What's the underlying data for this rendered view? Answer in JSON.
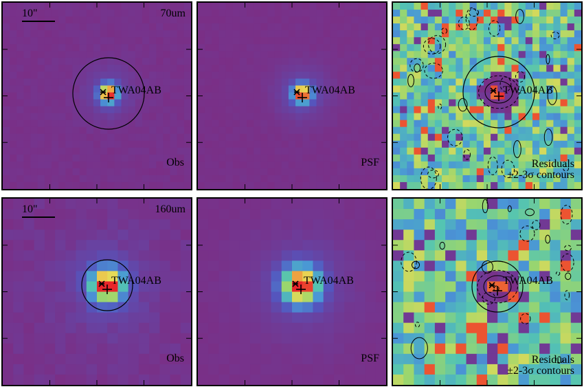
{
  "figure": {
    "source_name": "TWA04AB",
    "rows": [
      {
        "band": "70um",
        "scale": "10\"",
        "panels": [
          {
            "kind": "Obs",
            "type": "obs"
          },
          {
            "kind": "PSF",
            "type": "psf"
          },
          {
            "kind": "Residuals",
            "kind_line2": "±2-3σ contours",
            "type": "res"
          }
        ]
      },
      {
        "band": "160um",
        "scale": "10\"",
        "panels": [
          {
            "kind": "Obs",
            "type": "obs"
          },
          {
            "kind": "PSF",
            "type": "psf"
          },
          {
            "kind": "Residuals",
            "kind_line2": "±2-3σ contours",
            "type": "res"
          }
        ]
      }
    ],
    "colors": {
      "background": "#7a2f86",
      "peak": "#e8262b",
      "contour": "#000000"
    }
  }
}
